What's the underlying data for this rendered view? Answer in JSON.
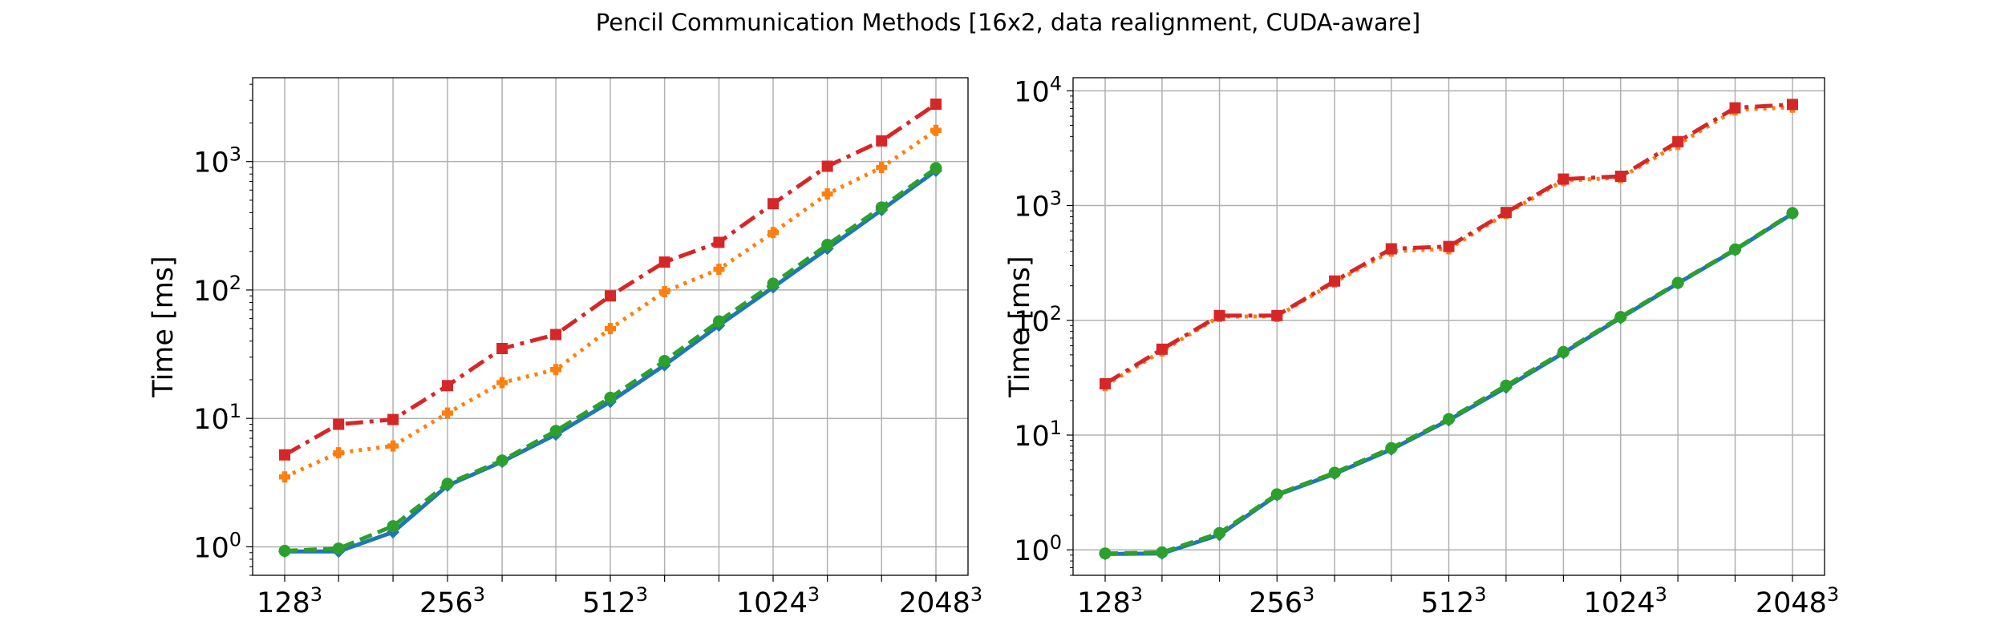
{
  "figure": {
    "title": "Pencil Communication Methods [16x2, data realignment, CUDA-aware]"
  },
  "chart_data": [
    {
      "type": "line",
      "ylabel": "Time [ms]",
      "yscale": "log",
      "ylim": [
        0.6,
        4500
      ],
      "grid": true,
      "x": [
        128,
        161,
        203,
        256,
        323,
        406,
        512,
        645,
        813,
        1024,
        1290,
        1625,
        2048
      ],
      "xticks": [
        {
          "value": 128,
          "base": "128",
          "exp": "3"
        },
        {
          "value": 256,
          "base": "256",
          "exp": "3"
        },
        {
          "value": 512,
          "base": "512",
          "exp": "3"
        },
        {
          "value": 1024,
          "base": "1024",
          "exp": "3"
        },
        {
          "value": 2048,
          "base": "2048",
          "exp": "3"
        }
      ],
      "yticks": [
        {
          "value": 1,
          "base": "10",
          "exp": "0"
        },
        {
          "value": 10,
          "base": "10",
          "exp": "1"
        },
        {
          "value": 100,
          "base": "10",
          "exp": "2"
        },
        {
          "value": 1000,
          "base": "10",
          "exp": "3"
        }
      ],
      "series": [
        {
          "color": "#1f77b4",
          "style": "solid",
          "marker": "diamond",
          "values": [
            0.92,
            0.92,
            1.3,
            3.0,
            4.6,
            7.5,
            13.5,
            26,
            53,
            105,
            210,
            420,
            850
          ]
        },
        {
          "color": "#ff7f0e",
          "style": "dotted",
          "marker": "plus",
          "values": [
            3.5,
            5.4,
            6.1,
            11,
            19,
            24,
            50,
            97,
            145,
            280,
            560,
            900,
            1750
          ]
        },
        {
          "color": "#2ca02c",
          "style": "dashed",
          "marker": "circle",
          "values": [
            0.93,
            0.97,
            1.45,
            3.1,
            4.7,
            8.0,
            14.5,
            28,
            57,
            112,
            225,
            440,
            890
          ]
        },
        {
          "color": "#d62728",
          "style": "dashdot",
          "marker": "square",
          "values": [
            5.2,
            9.0,
            9.8,
            18,
            35,
            45,
            90,
            165,
            235,
            470,
            920,
            1450,
            2800
          ]
        }
      ]
    },
    {
      "type": "line",
      "ylabel": "Time [ms]",
      "yscale": "log",
      "ylim": [
        0.6,
        13000
      ],
      "grid": true,
      "x": [
        128,
        161,
        203,
        256,
        323,
        406,
        512,
        645,
        813,
        1024,
        1290,
        1625,
        2048
      ],
      "xticks": [
        {
          "value": 128,
          "base": "128",
          "exp": "3"
        },
        {
          "value": 256,
          "base": "256",
          "exp": "3"
        },
        {
          "value": 512,
          "base": "512",
          "exp": "3"
        },
        {
          "value": 1024,
          "base": "1024",
          "exp": "3"
        },
        {
          "value": 2048,
          "base": "2048",
          "exp": "3"
        }
      ],
      "yticks": [
        {
          "value": 1,
          "base": "10",
          "exp": "0"
        },
        {
          "value": 10,
          "base": "10",
          "exp": "1"
        },
        {
          "value": 100,
          "base": "10",
          "exp": "2"
        },
        {
          "value": 1000,
          "base": "10",
          "exp": "3"
        },
        {
          "value": 10000,
          "base": "10",
          "exp": "4"
        }
      ],
      "series": [
        {
          "color": "#1f77b4",
          "style": "solid",
          "marker": "diamond",
          "values": [
            0.92,
            0.93,
            1.35,
            3.0,
            4.6,
            7.5,
            13.5,
            26,
            52,
            105,
            210,
            410,
            850
          ]
        },
        {
          "color": "#ff7f0e",
          "style": "dotted",
          "marker": "plus",
          "values": [
            27,
            54,
            108,
            108,
            215,
            400,
            420,
            850,
            1650,
            1750,
            3400,
            6800,
            7200
          ]
        },
        {
          "color": "#2ca02c",
          "style": "dashed",
          "marker": "circle",
          "values": [
            0.93,
            0.95,
            1.4,
            3.05,
            4.7,
            7.7,
            13.8,
            27,
            53,
            107,
            212,
            415,
            860
          ]
        },
        {
          "color": "#d62728",
          "style": "dashdot",
          "marker": "square",
          "values": [
            28,
            56,
            110,
            110,
            220,
            420,
            440,
            870,
            1700,
            1800,
            3600,
            7100,
            7600
          ]
        }
      ]
    }
  ]
}
